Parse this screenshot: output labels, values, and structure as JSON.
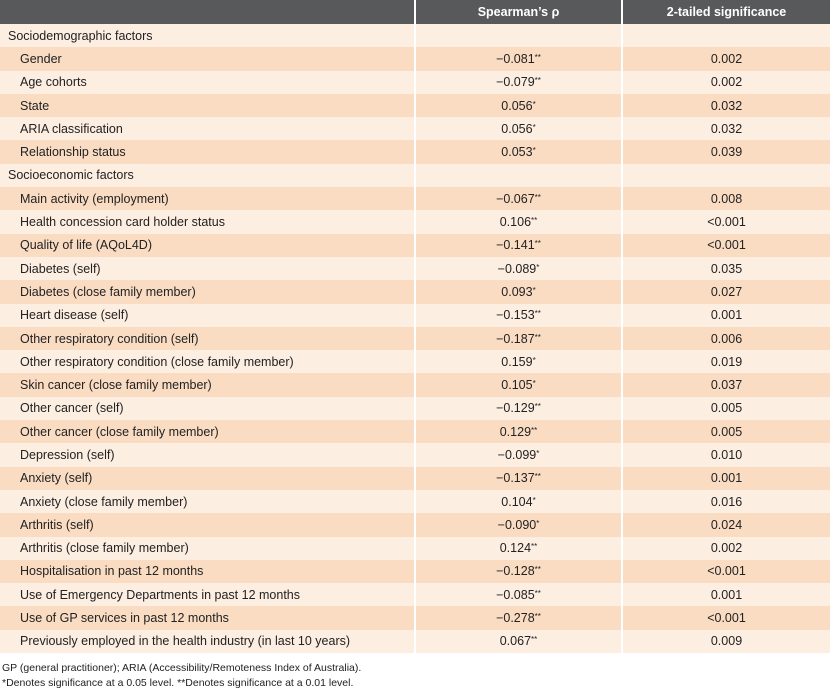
{
  "table": {
    "header": [
      "Spearman’s ρ",
      "2-tailed significance"
    ],
    "sections": [
      {
        "title": "Sociodemographic factors",
        "rows": [
          {
            "label": "Gender",
            "rho": "−0.081",
            "stars": "**",
            "sig": "0.002"
          },
          {
            "label": "Age cohorts",
            "rho": "−0.079",
            "stars": "**",
            "sig": "0.002"
          },
          {
            "label": "State",
            "rho": "0.056",
            "stars": "*",
            "sig": "0.032"
          },
          {
            "label": "ARIA classification",
            "rho": "0.056",
            "stars": "*",
            "sig": "0.032"
          },
          {
            "label": "Relationship status",
            "rho": "0.053",
            "stars": "*",
            "sig": "0.039"
          }
        ]
      },
      {
        "title": "Socioeconomic factors",
        "rows": [
          {
            "label": "Main activity (employment)",
            "rho": "−0.067",
            "stars": "**",
            "sig": "0.008"
          },
          {
            "label": "Health concession card holder status",
            "rho": "0.106",
            "stars": "**",
            "sig": "<0.001"
          },
          {
            "label": "Quality of life (AQoL4D)",
            "rho": "−0.141",
            "stars": "**",
            "sig": "<0.001"
          },
          {
            "label": "Diabetes (self)",
            "rho": "−0.089",
            "stars": "*",
            "sig": "0.035"
          },
          {
            "label": "Diabetes (close family member)",
            "rho": "0.093",
            "stars": "*",
            "sig": "0.027"
          },
          {
            "label": "Heart disease (self)",
            "rho": "−0.153",
            "stars": "**",
            "sig": "0.001"
          },
          {
            "label": "Other respiratory condition (self)",
            "rho": "−0.187",
            "stars": "**",
            "sig": "0.006"
          },
          {
            "label": "Other respiratory condition (close family member)",
            "rho": "0.159",
            "stars": "*",
            "sig": "0.019"
          },
          {
            "label": "Skin cancer (close family member)",
            "rho": "0.105",
            "stars": "*",
            "sig": "0.037"
          },
          {
            "label": "Other cancer (self)",
            "rho": "−0.129",
            "stars": "**",
            "sig": "0.005"
          },
          {
            "label": "Other cancer (close family member)",
            "rho": "0.129",
            "stars": "**",
            "sig": "0.005"
          },
          {
            "label": "Depression (self)",
            "rho": "−0.099",
            "stars": "*",
            "sig": "0.010"
          },
          {
            "label": "Anxiety (self)",
            "rho": "−0.137",
            "stars": "**",
            "sig": "0.001"
          },
          {
            "label": "Anxiety (close family member)",
            "rho": "0.104",
            "stars": "*",
            "sig": "0.016"
          },
          {
            "label": "Arthritis (self)",
            "rho": "−0.090",
            "stars": "*",
            "sig": "0.024"
          },
          {
            "label": "Arthritis (close family member)",
            "rho": "0.124",
            "stars": "**",
            "sig": "0.002"
          },
          {
            "label": "Hospitalisation in past 12 months",
            "rho": "−0.128",
            "stars": "**",
            "sig": "<0.001"
          },
          {
            "label": "Use of Emergency Departments in past 12 months",
            "rho": "−0.085",
            "stars": "**",
            "sig": "0.001"
          },
          {
            "label": "Use of GP services in past 12 months",
            "rho": "−0.278",
            "stars": "**",
            "sig": "<0.001"
          },
          {
            "label": "Previously employed in the health industry (in last 10 years)",
            "rho": "0.067",
            "stars": "**",
            "sig": "0.009"
          }
        ]
      }
    ]
  },
  "footnotes": [
    "GP (general practitioner); ARIA (Accessibility/Remoteness Index of Australia).",
    "*Denotes significance at a 0.05 level. **Denotes significance at a 0.01 level."
  ]
}
